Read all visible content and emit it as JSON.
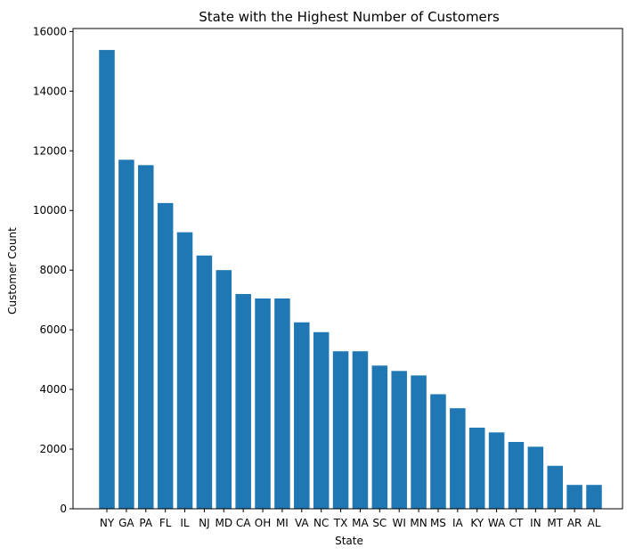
{
  "chart_data": {
    "type": "bar",
    "title": "State with the Highest Number of Customers",
    "xlabel": "State",
    "ylabel": "Customer Count",
    "categories": [
      "NY",
      "GA",
      "PA",
      "FL",
      "IL",
      "NJ",
      "MD",
      "CA",
      "OH",
      "MI",
      "VA",
      "NC",
      "TX",
      "MA",
      "SC",
      "WI",
      "MN",
      "MS",
      "IA",
      "KY",
      "WA",
      "CT",
      "IN",
      "MT",
      "AR",
      "AL"
    ],
    "values": [
      15380,
      11700,
      11520,
      10250,
      9270,
      8490,
      8000,
      7200,
      7050,
      7050,
      6250,
      5920,
      5280,
      5280,
      4800,
      4620,
      4470,
      3840,
      3370,
      2720,
      2560,
      2240,
      2080,
      1440,
      800,
      800
    ],
    "ylim": [
      0,
      16100
    ],
    "yticks": [
      0,
      2000,
      4000,
      6000,
      8000,
      10000,
      12000,
      14000,
      16000
    ],
    "grid": false,
    "bar_color": "#1f77b4"
  }
}
